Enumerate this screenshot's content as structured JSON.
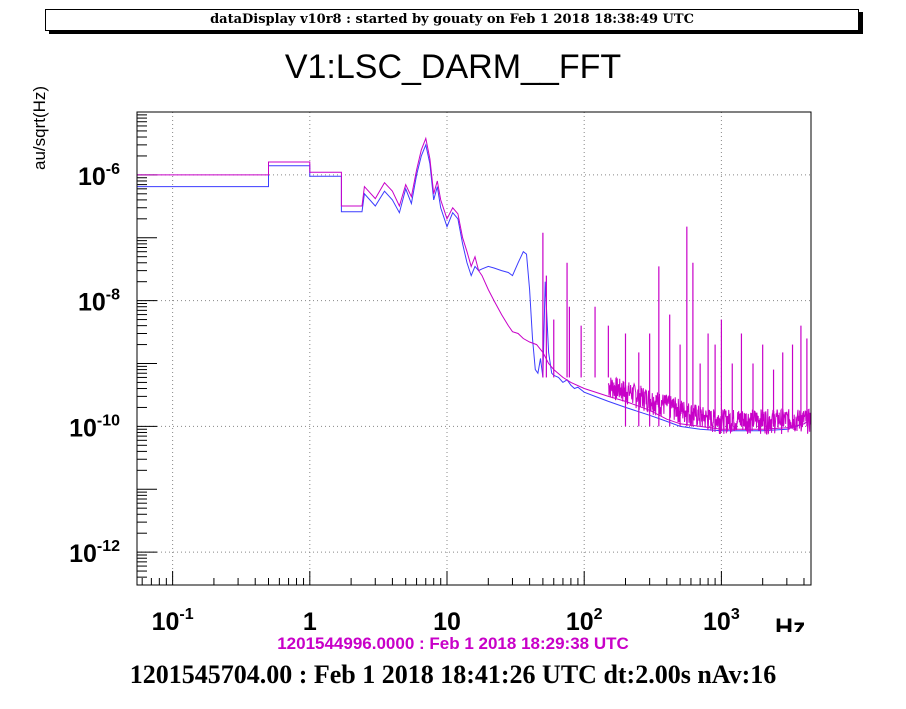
{
  "window": {
    "header": "dataDisplay v10r8 : started by gouaty on Feb  1 2018 18:38:49 UTC"
  },
  "footer": {
    "reference_time": "1201544996.0000 : Feb  1 2018 18:29:38 UTC",
    "current_time": "1201545704.00 : Feb  1 2018 18:41:26 UTC dt:2.00s nAv:16"
  },
  "chart_data": {
    "type": "line",
    "title": "V1:LSC_DARM__FFT",
    "ylabel": "au/sqrt(Hz)",
    "xlabel": "Hz",
    "x_scale": "log",
    "y_scale": "log",
    "xlim": [
      0.055,
      4500
    ],
    "ylim": [
      3e-13,
      1e-05
    ],
    "grid": true,
    "x_ticks": [
      {
        "value": 0.1,
        "base": "10",
        "exp": "-1"
      },
      {
        "value": 1,
        "base": "1",
        "exp": ""
      },
      {
        "value": 10,
        "base": "10",
        "exp": ""
      },
      {
        "value": 100,
        "base": "10",
        "exp": "2"
      },
      {
        "value": 1000,
        "base": "10",
        "exp": "3"
      }
    ],
    "y_ticks": [
      {
        "value": 1e-06,
        "base": "10",
        "exp": "-6"
      },
      {
        "value": 1e-08,
        "base": "10",
        "exp": "-8"
      },
      {
        "value": 1e-10,
        "base": "10",
        "exp": "-10"
      },
      {
        "value": 1e-12,
        "base": "10",
        "exp": "-12"
      }
    ],
    "series": [
      {
        "color": "#3c3cff",
        "width": 1,
        "x": [
          0.055,
          0.5,
          0.5,
          1.0,
          1.0,
          1.7,
          1.7,
          2.4,
          2.5,
          3.0,
          3.5,
          4.0,
          4.5,
          5.0,
          5.5,
          6.0,
          6.5,
          7.0,
          7.5,
          8.0,
          8.5,
          9.0,
          10.0,
          11.0,
          12.0,
          13.0,
          14.0,
          15.0,
          16.0,
          17.0,
          18.0,
          20.0,
          22.0,
          25.0,
          28.0,
          30.0,
          33.0,
          36.0,
          38.0,
          40.0,
          42.0,
          44.0,
          46.0,
          48.0,
          50.0,
          52.0,
          55.0,
          58.0,
          60.0,
          65.0,
          70.0,
          75.0,
          80.0,
          85.0,
          90.0,
          100.0,
          120.0,
          150.0,
          200.0,
          300.0,
          400.0,
          500.0,
          700.0,
          1000.0,
          1500.0,
          2000.0,
          3000.0,
          4000.0,
          4500.0
        ],
        "y": [
          6.5e-07,
          6.5e-07,
          1.4e-06,
          1.4e-06,
          9.5e-07,
          9.5e-07,
          2.6e-07,
          2.6e-07,
          5e-07,
          3.2e-07,
          5.5e-07,
          4e-07,
          2.5e-07,
          6e-07,
          3.5e-07,
          1e-06,
          2e-06,
          3e-06,
          1.5e-06,
          4e-07,
          6.5e-07,
          3e-07,
          1.5e-07,
          2.5e-07,
          2e-07,
          8e-08,
          4e-08,
          2.5e-08,
          3.5e-08,
          3e-08,
          3.2e-08,
          3.5e-08,
          3.3e-08,
          3e-08,
          2.8e-08,
          2.5e-08,
          4e-08,
          6e-08,
          5.5e-08,
          1.5e-08,
          2.5e-09,
          8e-10,
          7e-10,
          1.2e-09,
          6e-10,
          2e-08,
          1.5e-09,
          7e-10,
          6.5e-10,
          6e-10,
          5e-10,
          5.5e-10,
          4.5e-10,
          4e-10,
          4.2e-10,
          3.5e-10,
          3e-10,
          2.5e-10,
          2e-10,
          1.5e-10,
          1.2e-10,
          1e-10,
          9e-11,
          8.5e-11,
          8.5e-11,
          8.5e-11,
          9e-11,
          1.1e-10,
          1.3e-10
        ]
      },
      {
        "color": "#c800c8",
        "width": 1,
        "x": [
          0.055,
          0.5,
          0.5,
          1.0,
          1.0,
          1.7,
          1.7,
          2.4,
          2.5,
          3.0,
          3.5,
          4.0,
          4.5,
          5.0,
          5.5,
          6.0,
          6.5,
          7.0,
          7.5,
          8.0,
          8.5,
          9.0,
          10.0,
          11.0,
          12.0,
          13.0,
          14.0,
          15.0,
          16.0,
          17.0,
          18.0,
          20.0,
          22.0,
          25.0,
          28.0,
          30.0,
          33.0,
          36.0,
          40.0,
          45.0,
          50.0,
          55.0,
          60.0,
          70.0,
          80.0,
          100.0,
          150.0,
          200.0,
          300.0,
          400.0,
          500.0,
          700.0,
          1000.0,
          1500.0,
          2000.0,
          3000.0,
          4000.0,
          4500.0
        ],
        "y": [
          1e-06,
          1e-06,
          1.6e-06,
          1.6e-06,
          1.1e-06,
          1.1e-06,
          3.2e-07,
          3.2e-07,
          6.5e-07,
          4.2e-07,
          7.5e-07,
          5.5e-07,
          3.2e-07,
          7e-07,
          4.5e-07,
          1.2e-06,
          2.5e-06,
          3.8e-06,
          1.8e-06,
          5e-07,
          8e-07,
          4e-07,
          2e-07,
          3e-07,
          2.4e-07,
          1e-07,
          6e-08,
          3.5e-08,
          5e-08,
          3e-08,
          2.5e-08,
          1.5e-08,
          1e-08,
          6e-09,
          4e-09,
          3.2e-09,
          3e-09,
          2.5e-09,
          2.2e-09,
          2e-09,
          1.5e-09,
          1e-09,
          8e-10,
          6e-10,
          5e-10,
          4e-10,
          3e-10,
          2.5e-10,
          1.8e-10,
          1.3e-10,
          1.1e-10,
          1e-10,
          9e-11,
          9e-11,
          9e-11,
          9.5e-11,
          1.1e-10,
          1.3e-10
        ]
      }
    ],
    "peaks": [
      {
        "x": 50,
        "y": 1.2e-07
      },
      {
        "x": 53,
        "y": 2.5e-08
      },
      {
        "x": 60,
        "y": 5e-09
      },
      {
        "x": 75,
        "y": 4e-08
      },
      {
        "x": 78,
        "y": 8e-09
      },
      {
        "x": 95,
        "y": 4e-09
      },
      {
        "x": 120,
        "y": 8e-09
      },
      {
        "x": 150,
        "y": 4e-09
      },
      {
        "x": 200,
        "y": 3e-09
      },
      {
        "x": 250,
        "y": 1.5e-09
      },
      {
        "x": 300,
        "y": 3e-09
      },
      {
        "x": 350,
        "y": 3.5e-08
      },
      {
        "x": 420,
        "y": 6e-09
      },
      {
        "x": 500,
        "y": 2e-09
      },
      {
        "x": 560,
        "y": 1.5e-07
      },
      {
        "x": 620,
        "y": 4e-08
      },
      {
        "x": 700,
        "y": 1e-09
      },
      {
        "x": 800,
        "y": 3e-09
      },
      {
        "x": 900,
        "y": 2e-09
      },
      {
        "x": 1000,
        "y": 5e-09
      },
      {
        "x": 1200,
        "y": 1e-09
      },
      {
        "x": 1400,
        "y": 3e-09
      },
      {
        "x": 1700,
        "y": 1e-09
      },
      {
        "x": 2000,
        "y": 2e-09
      },
      {
        "x": 2400,
        "y": 8e-10
      },
      {
        "x": 2800,
        "y": 1.5e-09
      },
      {
        "x": 3300,
        "y": 2e-09
      },
      {
        "x": 3800,
        "y": 4e-09
      },
      {
        "x": 4200,
        "y": 2.5e-09
      }
    ]
  }
}
